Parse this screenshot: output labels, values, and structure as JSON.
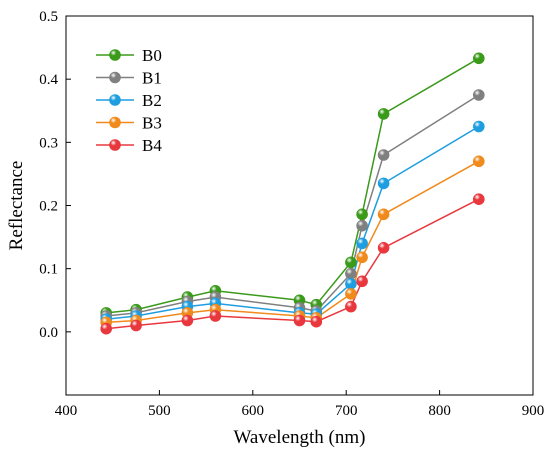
{
  "chart_data": {
    "type": "line",
    "xlabel": "Wavelength (nm)",
    "ylabel": "Reflectance",
    "xlim": [
      400,
      900
    ],
    "ylim": [
      -0.1,
      0.5
    ],
    "xticks": [
      "400",
      "500",
      "600",
      "700",
      "800",
      "900"
    ],
    "yticks": [
      "0.0",
      "0.1",
      "0.2",
      "0.3",
      "0.4",
      "0.5"
    ],
    "grid": false,
    "legend_position": "top-left",
    "x": [
      443,
      475,
      530,
      560,
      650,
      668,
      705,
      717,
      740,
      842
    ],
    "series": [
      {
        "name": "B0",
        "color": "#3a9a1a",
        "values": [
          0.03,
          0.035,
          0.055,
          0.065,
          0.05,
          0.043,
          0.11,
          0.186,
          0.345,
          0.433
        ]
      },
      {
        "name": "B1",
        "color": "#808080",
        "values": [
          0.025,
          0.03,
          0.048,
          0.055,
          0.038,
          0.033,
          0.092,
          0.168,
          0.28,
          0.375
        ]
      },
      {
        "name": "B2",
        "color": "#1e9ee0",
        "values": [
          0.02,
          0.025,
          0.04,
          0.045,
          0.03,
          0.028,
          0.076,
          0.14,
          0.235,
          0.325
        ]
      },
      {
        "name": "B3",
        "color": "#f08a1c",
        "values": [
          0.015,
          0.018,
          0.03,
          0.035,
          0.025,
          0.022,
          0.06,
          0.118,
          0.186,
          0.27
        ]
      },
      {
        "name": "B4",
        "color": "#e8383e",
        "values": [
          0.005,
          0.01,
          0.018,
          0.025,
          0.018,
          0.016,
          0.04,
          0.08,
          0.133,
          0.21
        ]
      }
    ]
  }
}
